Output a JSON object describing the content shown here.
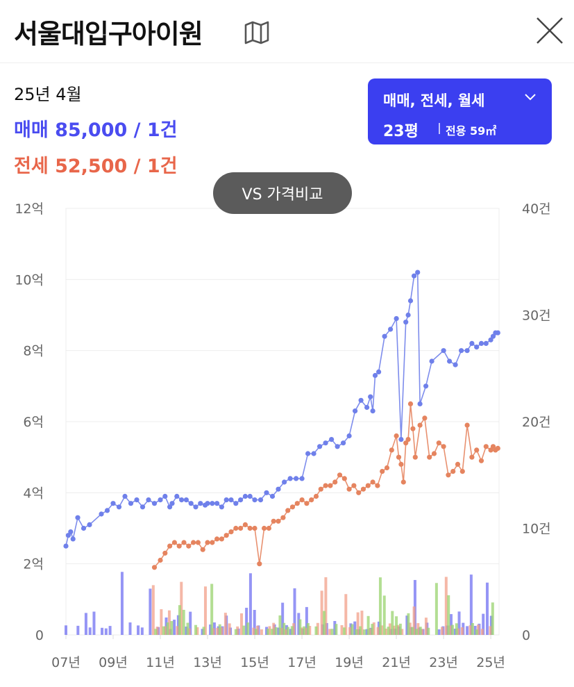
{
  "header": {
    "title": "서울대입구아이원",
    "map_icon": "map-icon",
    "close_icon": "close-icon"
  },
  "summary": {
    "period": "25년 4월",
    "sale": "매매 85,000 / 1건",
    "jeonse": "전세 52,500 / 1건",
    "sale_color": "#4a4cf0",
    "jeonse_color": "#e8664a"
  },
  "filter": {
    "types": "매매, 전세, 월세",
    "pyeong": "23평",
    "area": "전용 59㎡",
    "bg_color": "#3b3ff0"
  },
  "compare_button": "VS 가격비교",
  "chart_data": {
    "type": "line",
    "left_ticks": [
      "12억",
      "10억",
      "8억",
      "6억",
      "4억",
      "2억",
      "0"
    ],
    "right_ticks": [
      "40건",
      "30건",
      "20건",
      "10건",
      "0"
    ],
    "x_ticks": [
      "07년",
      "09년",
      "11년",
      "13년",
      "15년",
      "17년",
      "19년",
      "21년",
      "23년",
      "25년"
    ],
    "x_range": [
      2007.0,
      2025.35
    ],
    "ylim_price_eok": [
      0,
      12
    ],
    "ylim_count": [
      0,
      40
    ],
    "grid": true,
    "series": [
      {
        "name": "매매",
        "color": "#6f80ea",
        "x": [
          2007.0,
          2007.1,
          2007.2,
          2007.3,
          2007.5,
          2007.75,
          2008.0,
          2008.5,
          2008.75,
          2009.0,
          2009.25,
          2009.5,
          2009.75,
          2010.0,
          2010.25,
          2010.5,
          2010.75,
          2011.0,
          2011.2,
          2011.4,
          2011.5,
          2011.7,
          2011.9,
          2012.1,
          2012.3,
          2012.5,
          2012.7,
          2012.9,
          2013.0,
          2013.2,
          2013.4,
          2013.6,
          2013.8,
          2014.0,
          2014.2,
          2014.4,
          2014.6,
          2014.8,
          2015.0,
          2015.25,
          2015.5,
          2015.75,
          2016.0,
          2016.25,
          2016.5,
          2016.75,
          2017.0,
          2017.25,
          2017.5,
          2017.75,
          2018.0,
          2018.25,
          2018.5,
          2018.75,
          2019.0,
          2019.25,
          2019.5,
          2019.75,
          2019.9,
          2020.0,
          2020.1,
          2020.25,
          2020.5,
          2020.75,
          2021.0,
          2021.2,
          2021.4,
          2021.5,
          2021.6,
          2021.75,
          2021.9,
          2022.0,
          2022.25,
          2022.5,
          2023.0,
          2023.25,
          2023.5,
          2023.75,
          2024.0,
          2024.2,
          2024.4,
          2024.6,
          2024.8,
          2025.0,
          2025.1,
          2025.2,
          2025.3
        ],
        "values": [
          2.5,
          2.8,
          2.9,
          2.7,
          3.3,
          3.0,
          3.1,
          3.4,
          3.5,
          3.7,
          3.6,
          3.9,
          3.7,
          3.8,
          3.6,
          3.8,
          3.7,
          3.8,
          3.9,
          3.6,
          3.7,
          3.9,
          3.8,
          3.8,
          3.7,
          3.6,
          3.7,
          3.65,
          3.7,
          3.7,
          3.7,
          3.6,
          3.8,
          3.8,
          3.7,
          3.8,
          3.9,
          3.9,
          3.8,
          3.8,
          4.0,
          3.9,
          4.1,
          4.3,
          4.4,
          4.4,
          4.4,
          5.1,
          5.1,
          5.3,
          5.4,
          5.5,
          5.3,
          5.4,
          5.6,
          6.3,
          6.6,
          6.4,
          6.7,
          6.3,
          7.3,
          7.4,
          8.4,
          8.6,
          8.9,
          5.5,
          8.8,
          9.0,
          9.4,
          10.1,
          10.2,
          6.5,
          7.0,
          7.7,
          8.0,
          7.7,
          7.6,
          8.0,
          8.0,
          8.2,
          8.1,
          8.2,
          8.2,
          8.3,
          8.4,
          8.5,
          8.5
        ]
      },
      {
        "name": "전세",
        "color": "#e5845f",
        "x": [
          2010.75,
          2011.0,
          2011.2,
          2011.4,
          2011.6,
          2011.8,
          2012.0,
          2012.2,
          2012.4,
          2012.6,
          2012.8,
          2013.0,
          2013.2,
          2013.4,
          2013.6,
          2013.8,
          2014.0,
          2014.2,
          2014.4,
          2014.6,
          2014.8,
          2015.0,
          2015.2,
          2015.4,
          2015.6,
          2015.8,
          2016.0,
          2016.2,
          2016.4,
          2016.6,
          2016.8,
          2017.0,
          2017.2,
          2017.4,
          2017.6,
          2017.8,
          2018.0,
          2018.2,
          2018.4,
          2018.6,
          2018.8,
          2019.0,
          2019.2,
          2019.4,
          2019.6,
          2019.8,
          2020.0,
          2020.2,
          2020.4,
          2020.6,
          2020.8,
          2021.0,
          2021.1,
          2021.2,
          2021.3,
          2021.4,
          2021.5,
          2021.6,
          2021.7,
          2021.8,
          2022.0,
          2022.2,
          2022.4,
          2022.6,
          2022.8,
          2023.0,
          2023.2,
          2023.4,
          2023.6,
          2023.8,
          2024.0,
          2024.2,
          2024.4,
          2024.6,
          2024.8,
          2025.0,
          2025.1,
          2025.2,
          2025.3
        ],
        "values": [
          1.9,
          2.1,
          2.3,
          2.5,
          2.6,
          2.5,
          2.6,
          2.5,
          2.6,
          2.6,
          2.4,
          2.6,
          2.6,
          2.7,
          2.7,
          2.8,
          2.9,
          3.0,
          3.0,
          3.1,
          3.0,
          3.0,
          2.0,
          3.0,
          3.0,
          3.2,
          3.2,
          3.3,
          3.5,
          3.6,
          3.7,
          3.8,
          3.7,
          3.8,
          3.9,
          4.1,
          4.2,
          4.2,
          4.3,
          4.5,
          4.4,
          4.1,
          4.2,
          4.0,
          4.1,
          4.2,
          4.3,
          4.2,
          4.6,
          4.7,
          5.2,
          5.6,
          5.0,
          4.8,
          4.3,
          5.4,
          5.5,
          6.5,
          5.8,
          5.0,
          5.9,
          6.1,
          5.0,
          5.1,
          5.4,
          5.3,
          4.5,
          4.6,
          4.8,
          4.6,
          5.9,
          5.0,
          5.2,
          4.9,
          5.3,
          5.2,
          5.3,
          5.2,
          5.25
        ]
      }
    ]
  }
}
